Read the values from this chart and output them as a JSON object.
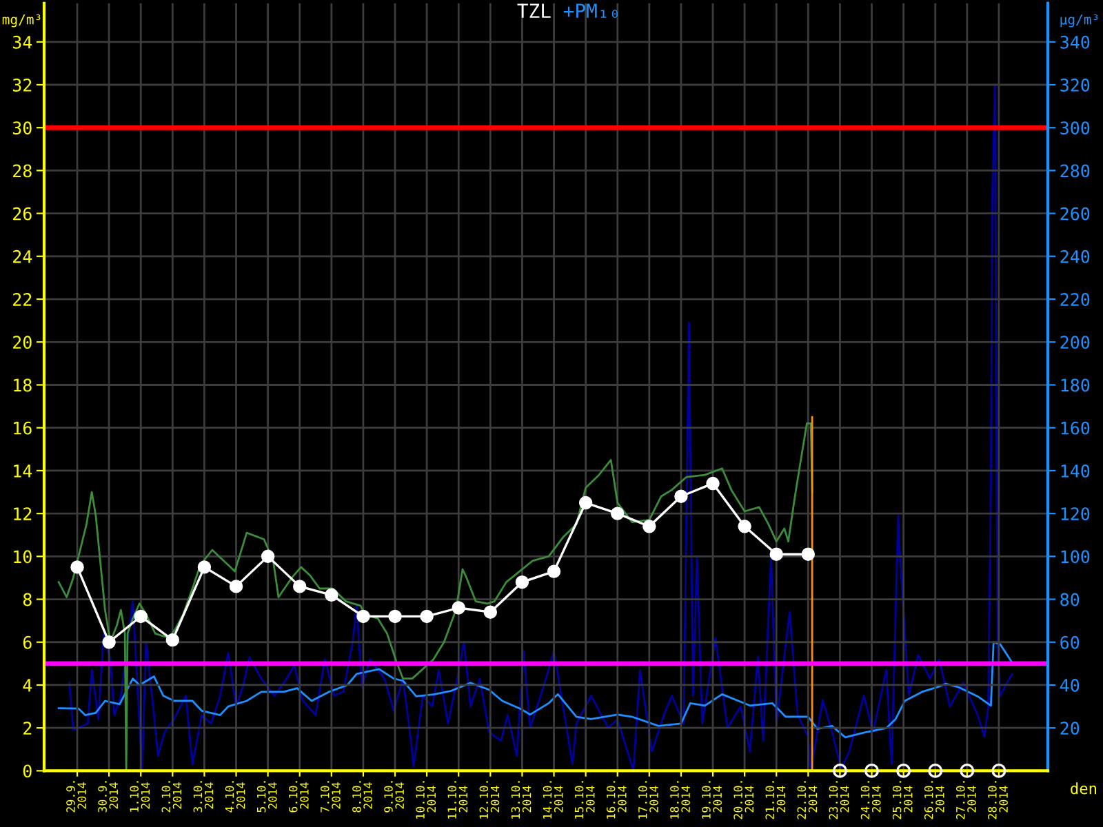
{
  "chart_data": {
    "type": "line",
    "title": "TZL",
    "subtitle": "+PM₁₀",
    "ylabel": "mg/m³",
    "y2label": "µg/m³",
    "xlabel": "den",
    "xlim": [
      "2014-09-27T23:00",
      "2014-10-29T13:00"
    ],
    "ylim": [
      0,
      35.8
    ],
    "y2lim": [
      0,
      358
    ],
    "xticks": [
      {
        "value": "2014-09-29",
        "label": "29.9.\n2014"
      },
      {
        "value": "2014-09-30",
        "label": "30.9.\n2014"
      },
      {
        "value": "2014-10-01",
        "label": "1.10.\n2014"
      },
      {
        "value": "2014-10-02",
        "label": "2.10.\n2014"
      },
      {
        "value": "2014-10-03",
        "label": "3.10.\n2014"
      },
      {
        "value": "2014-10-04",
        "label": "4.10.\n2014"
      },
      {
        "value": "2014-10-05",
        "label": "5.10.\n2014"
      },
      {
        "value": "2014-10-06",
        "label": "6.10.\n2014"
      },
      {
        "value": "2014-10-07",
        "label": "7.10.\n2014"
      },
      {
        "value": "2014-10-08",
        "label": "8.10.\n2014"
      },
      {
        "value": "2014-10-09",
        "label": "9.10.\n2014"
      },
      {
        "value": "2014-10-10",
        "label": "10.10.\n2014"
      },
      {
        "value": "2014-10-11",
        "label": "11.10.\n2014"
      },
      {
        "value": "2014-10-12",
        "label": "12.10.\n2014"
      },
      {
        "value": "2014-10-13",
        "label": "13.10.\n2014"
      },
      {
        "value": "2014-10-14",
        "label": "14.10.\n2014"
      },
      {
        "value": "2014-10-15",
        "label": "15.10.\n2014"
      },
      {
        "value": "2014-10-16",
        "label": "16.10.\n2014"
      },
      {
        "value": "2014-10-17",
        "label": "17.10.\n2014"
      },
      {
        "value": "2014-10-18",
        "label": "18.10.\n2014"
      },
      {
        "value": "2014-10-19",
        "label": "19.10.\n2014"
      },
      {
        "value": "2014-10-20",
        "label": "20.10.\n2014"
      },
      {
        "value": "2014-10-21",
        "label": "21.10.\n2014"
      },
      {
        "value": "2014-10-22",
        "label": "22.10.\n2014"
      },
      {
        "value": "2014-10-23",
        "label": "23.10.\n2014"
      },
      {
        "value": "2014-10-24",
        "label": "24.10.\n2014"
      },
      {
        "value": "2014-10-25",
        "label": "25.10.\n2014"
      },
      {
        "value": "2014-10-26",
        "label": "26.10.\n2014"
      },
      {
        "value": "2014-10-27",
        "label": "27.10.\n2014"
      },
      {
        "value": "2014-10-28",
        "label": "28.10.\n2014"
      }
    ],
    "yticks": [
      0,
      2,
      4,
      6,
      8,
      10,
      12,
      14,
      16,
      18,
      20,
      22,
      24,
      26,
      28,
      30,
      32,
      34
    ],
    "y2ticks": [
      20,
      40,
      60,
      80,
      100,
      120,
      140,
      160,
      180,
      200,
      220,
      240,
      260,
      280,
      300,
      320,
      340
    ],
    "grid": true,
    "ref_lines": [
      {
        "axis": "y",
        "value": 30,
        "color": "#ff0000"
      },
      {
        "axis": "y",
        "value": 5,
        "color": "#ff00ff"
      }
    ],
    "series": [
      {
        "axis": "y2",
        "color": "#0000a0",
        "x": [
          "2014-09-28T18:00",
          "2014-09-28T21:00",
          "2014-09-29T08:00",
          "2014-09-29T11:00",
          "2014-09-29T16:00",
          "2014-09-29T20:00",
          "2014-09-30T01:00",
          "2014-09-30T04:00",
          "2014-09-30T09:00",
          "2014-09-30T18:00",
          "2014-09-30T22:00",
          "2014-10-01T01:00",
          "2014-10-01T04:00",
          "2014-10-01T10:00",
          "2014-10-01T13:00",
          "2014-10-01T18:00",
          "2014-10-02T01:00",
          "2014-10-02T10:00",
          "2014-10-02T15:00",
          "2014-10-02T22:00",
          "2014-10-03T05:00",
          "2014-10-03T12:00",
          "2014-10-03T18:00",
          "2014-10-04T00:00",
          "2014-10-04T05:00",
          "2014-10-04T10:00",
          "2014-10-04T19:00",
          "2014-10-05T05:00",
          "2014-10-05T12:00",
          "2014-10-05T20:00",
          "2014-10-06T02:00",
          "2014-10-06T12:00",
          "2014-10-06T19:00",
          "2014-10-07T02:00",
          "2014-10-07T09:00",
          "2014-10-07T16:00",
          "2014-10-07T19:00",
          "2014-10-07T23:00",
          "2014-10-08T05:00",
          "2014-10-08T16:00",
          "2014-10-08T23:00",
          "2014-10-09T06:00",
          "2014-10-09T12:00",
          "2014-10-09T14:00",
          "2014-10-09T21:00",
          "2014-10-10T04:00",
          "2014-10-10T09:00",
          "2014-10-10T16:00",
          "2014-10-10T23:00",
          "2014-10-11T04:00",
          "2014-10-11T09:00",
          "2014-10-11T16:00",
          "2014-10-11T23:00",
          "2014-10-12T08:00",
          "2014-10-12T13:00",
          "2014-10-12T20:00",
          "2014-10-13T01:00",
          "2014-10-13T06:00",
          "2014-10-13T16:00",
          "2014-10-14T00:00",
          "2014-10-14T14:00",
          "2014-10-14T17:00",
          "2014-10-15T04:00",
          "2014-10-15T17:00",
          "2014-10-16T00:00",
          "2014-10-16T12:00",
          "2014-10-16T17:00",
          "2014-10-17T02:00",
          "2014-10-17T11:00",
          "2014-10-17T17:00",
          "2014-10-18T02:00",
          "2014-10-18T06:00",
          "2014-10-18T09:00",
          "2014-10-18T12:00",
          "2014-10-18T16:00",
          "2014-10-19T02:00",
          "2014-10-19T11:00",
          "2014-10-19T21:00",
          "2014-10-20T04:00",
          "2014-10-20T10:00",
          "2014-10-20T14:00",
          "2014-10-20T20:00",
          "2014-10-21T00:00",
          "2014-10-21T10:00",
          "2014-10-21T16:00",
          "2014-10-22T00:00",
          "2014-10-22T02:00",
          "2014-10-22T11:00",
          "2014-10-22T18:00",
          "2014-10-23T01:00",
          "2014-10-23T07:00",
          "2014-10-23T18:00",
          "2014-10-24T01:00",
          "2014-10-24T11:00",
          "2014-10-24T15:00",
          "2014-10-24T20:00",
          "2014-10-24T21:00",
          "2014-10-25T04:00",
          "2014-10-25T11:00",
          "2014-10-25T20:00",
          "2014-10-26T03:00",
          "2014-10-26T11:00",
          "2014-10-26T21:00",
          "2014-10-27T08:00",
          "2014-10-27T13:00",
          "2014-10-27T16:00",
          "2014-10-27T18:00",
          "2014-10-27T19:00",
          "2014-10-27T21:00",
          "2014-10-27T23:00",
          "2014-10-28T01:00",
          "2014-10-28T06:00",
          "2014-10-28T10:00"
        ],
        "values": [
          41,
          19,
          22,
          47,
          24,
          64,
          52,
          26,
          35,
          79,
          33,
          0,
          60,
          26,
          7,
          18,
          24,
          35,
          3,
          26,
          22,
          35,
          55,
          30,
          39,
          53,
          43,
          35,
          41,
          49,
          33,
          26,
          52,
          35,
          37,
          60,
          77,
          39,
          52,
          43,
          28,
          43,
          14,
          2,
          35,
          30,
          47,
          22,
          43,
          60,
          30,
          43,
          18,
          14,
          26,
          7,
          56,
          20,
          39,
          56,
          3,
          22,
          35,
          20,
          24,
          0,
          47,
          9,
          26,
          35,
          22,
          209,
          35,
          100,
          22,
          62,
          20,
          30,
          9,
          53,
          14,
          100,
          22,
          74,
          26,
          16,
          0,
          33,
          18,
          1,
          9,
          35,
          18,
          47,
          3,
          119,
          104,
          35,
          54,
          43,
          52,
          30,
          41,
          26,
          16,
          30,
          136,
          265,
          320,
          56,
          35,
          41,
          45
        ]
      },
      {
        "axis": "y2",
        "color": "#1e90ff",
        "x": [
          "2014-09-28T10:00",
          "2014-09-29T01:00",
          "2014-09-29T06:00",
          "2014-09-29T14:00",
          "2014-09-29T21:00",
          "2014-09-30T08:00",
          "2014-09-30T18:00",
          "2014-09-30T23:00",
          "2014-10-01T10:00",
          "2014-10-01T17:00",
          "2014-10-02T01:00",
          "2014-10-02T15:00",
          "2014-10-02T22:00",
          "2014-10-03T12:00",
          "2014-10-03T18:00",
          "2014-10-04T08:00",
          "2014-10-04T19:00",
          "2014-10-05T12:00",
          "2014-10-05T22:00",
          "2014-10-06T09:00",
          "2014-10-06T22:00",
          "2014-10-07T12:00",
          "2014-10-07T19:00",
          "2014-10-08T12:00",
          "2014-10-08T23:00",
          "2014-10-09T06:00",
          "2014-10-09T16:00",
          "2014-10-10T06:00",
          "2014-10-10T18:00",
          "2014-10-11T09:00",
          "2014-10-11T23:00",
          "2014-10-12T09:00",
          "2014-10-12T23:00",
          "2014-10-13T06:00",
          "2014-10-13T20:00",
          "2014-10-14T03:00",
          "2014-10-14T17:00",
          "2014-10-15T04:00",
          "2014-10-16T00:00",
          "2014-10-16T11:00",
          "2014-10-17T07:00",
          "2014-10-18T00:00",
          "2014-10-18T07:00",
          "2014-10-18T18:00",
          "2014-10-19T07:00",
          "2014-10-20T04:00",
          "2014-10-20T21:00",
          "2014-10-21T07:00",
          "2014-10-22T00:00",
          "2014-10-22T07:00",
          "2014-10-22T18:00",
          "2014-10-23T04:00",
          "2014-10-23T18:00",
          "2014-10-24T11:00",
          "2014-10-24T18:00",
          "2014-10-25T01:00",
          "2014-10-25T14:00",
          "2014-10-26T01:00",
          "2014-10-26T08:00",
          "2014-10-26T18:00",
          "2014-10-27T08:00",
          "2014-10-27T18:00",
          "2014-10-27T20:00",
          "2014-10-28T01:00",
          "2014-10-28T10:00"
        ],
        "values": [
          29.2,
          29.0,
          26.0,
          27.0,
          32.6,
          31.0,
          43.0,
          40.0,
          44.0,
          35.0,
          32.6,
          32.6,
          28.0,
          26.0,
          30.0,
          32.6,
          36.8,
          36.8,
          38.5,
          32.6,
          36.8,
          40.0,
          45.2,
          47.4,
          43.0,
          42.0,
          34.7,
          35.7,
          37.2,
          41.0,
          37.8,
          32.6,
          28.8,
          26.2,
          31.5,
          35.7,
          25.2,
          24.1,
          26.2,
          25.2,
          20.9,
          22.0,
          31.5,
          30.4,
          35.7,
          30.4,
          31.5,
          25.2,
          25.2,
          19.5,
          20.9,
          15.6,
          17.8,
          19.9,
          24.1,
          32.6,
          36.8,
          38.9,
          40.6,
          38.9,
          34.7,
          30.4,
          60.0,
          59.0,
          50.5
        ]
      },
      {
        "color": "#3c8c3c",
        "x": [
          "2014-09-28T10:00",
          "2014-09-28T16:00",
          "2014-09-28T21:00",
          "2014-09-29T01:00",
          "2014-09-29T07:00",
          "2014-09-29T11:00",
          "2014-09-29T14:00",
          "2014-09-29T21:00",
          "2014-09-30T01:00",
          "2014-09-30T06:00",
          "2014-09-30T09:00",
          "2014-09-30T12:00",
          "2014-09-30T13:00",
          "2014-09-30T14:00",
          "2014-09-30T18:00",
          "2014-09-30T23:00",
          "2014-10-01T04:00",
          "2014-10-01T11:00",
          "2014-10-01T21:00",
          "2014-10-02T02:00",
          "2014-10-02T08:00",
          "2014-10-02T15:00",
          "2014-10-02T21:00",
          "2014-10-03T06:00",
          "2014-10-03T11:00",
          "2014-10-03T18:00",
          "2014-10-03T23:00",
          "2014-10-04T08:00",
          "2014-10-04T21:00",
          "2014-10-05T04:00",
          "2014-10-05T08:00",
          "2014-10-05T18:00",
          "2014-10-06T01:00",
          "2014-10-06T08:00",
          "2014-10-06T15:00",
          "2014-10-07T01:00",
          "2014-10-07T11:00",
          "2014-10-07T22:00",
          "2014-10-08T01:00",
          "2014-10-08T11:00",
          "2014-10-08T18:00",
          "2014-10-09T01:00",
          "2014-10-09T06:00",
          "2014-10-09T13:00",
          "2014-10-09T22:00",
          "2014-10-10T05:00",
          "2014-10-10T13:00",
          "2014-10-10T22:00",
          "2014-10-11T03:00",
          "2014-10-11T06:00",
          "2014-10-11T13:00",
          "2014-10-11T22:00",
          "2014-10-12T03:00",
          "2014-10-12T12:00",
          "2014-10-12T18:00",
          "2014-10-13T08:00",
          "2014-10-13T20:00",
          "2014-10-14T07:00",
          "2014-10-14T17:00",
          "2014-10-15T00:00",
          "2014-10-15T10:00",
          "2014-10-15T19:00",
          "2014-10-16T00:00",
          "2014-10-16T11:00",
          "2014-10-17T00:00",
          "2014-10-17T09:00",
          "2014-10-17T17:00",
          "2014-10-18T04:00",
          "2014-10-18T18:00",
          "2014-10-19T07:00",
          "2014-10-19T14:00",
          "2014-10-20T00:00",
          "2014-10-20T11:00",
          "2014-10-20T18:00",
          "2014-10-21T00:00",
          "2014-10-21T06:00",
          "2014-10-21T09:00",
          "2014-10-21T14:00",
          "2014-10-21T19:00",
          "2014-10-21T23:00",
          "2014-10-22T02:00",
          "2014-10-22T03:00"
        ],
        "values": [
          8.8,
          8.1,
          9.0,
          10.0,
          11.5,
          13.0,
          11.9,
          7.5,
          6.0,
          6.8,
          7.5,
          6.4,
          0,
          6.4,
          7.1,
          7.8,
          7.3,
          6.4,
          6.2,
          6.6,
          7.3,
          8.5,
          9.6,
          10.3,
          10.0,
          9.6,
          9.3,
          11.1,
          10.8,
          9.8,
          8.1,
          9.0,
          9.5,
          9.1,
          8.5,
          8.5,
          7.9,
          7.7,
          7.3,
          7.1,
          6.4,
          5.1,
          4.3,
          4.3,
          4.8,
          5.2,
          6.0,
          7.5,
          9.4,
          9.0,
          7.9,
          7.8,
          7.9,
          8.8,
          9.1,
          9.8,
          10.0,
          10.9,
          11.5,
          13.2,
          13.8,
          14.5,
          12.5,
          11.6,
          11.7,
          12.8,
          13.1,
          13.7,
          13.8,
          14.1,
          13.1,
          12.1,
          12.3,
          11.5,
          10.7,
          11.3,
          10.7,
          12.8,
          14.7,
          16.2,
          16.2,
          13.0
        ]
      },
      {
        "color": "#ff8c00",
        "x": [
          "2014-10-22T03:00",
          "2014-10-22T03:00"
        ],
        "values": [
          0,
          16.5
        ]
      },
      {
        "color": "#ffffff",
        "marker": "circle",
        "x": [
          "2014-09-29",
          "2014-09-30",
          "2014-10-01",
          "2014-10-02",
          "2014-10-03",
          "2014-10-04",
          "2014-10-05",
          "2014-10-06",
          "2014-10-07",
          "2014-10-08",
          "2014-10-09",
          "2014-10-10",
          "2014-10-11",
          "2014-10-12",
          "2014-10-13",
          "2014-10-14",
          "2014-10-15",
          "2014-10-16",
          "2014-10-17",
          "2014-10-18",
          "2014-10-19",
          "2014-10-20",
          "2014-10-21",
          "2014-10-22"
        ],
        "values": [
          9.5,
          6.0,
          7.2,
          6.1,
          9.5,
          8.6,
          10.0,
          8.6,
          8.2,
          7.2,
          7.2,
          7.2,
          7.6,
          7.4,
          8.8,
          9.3,
          12.5,
          12.0,
          11.4,
          12.8,
          13.4,
          11.4,
          10.1,
          10.1
        ]
      },
      {
        "type": "scatter",
        "color": "#ffffff",
        "marker": "circle",
        "x": [
          "2014-10-23",
          "2014-10-24",
          "2014-10-25",
          "2014-10-26",
          "2014-10-27",
          "2014-10-28"
        ],
        "values": [
          0,
          0,
          0,
          0,
          0,
          0
        ]
      }
    ]
  }
}
